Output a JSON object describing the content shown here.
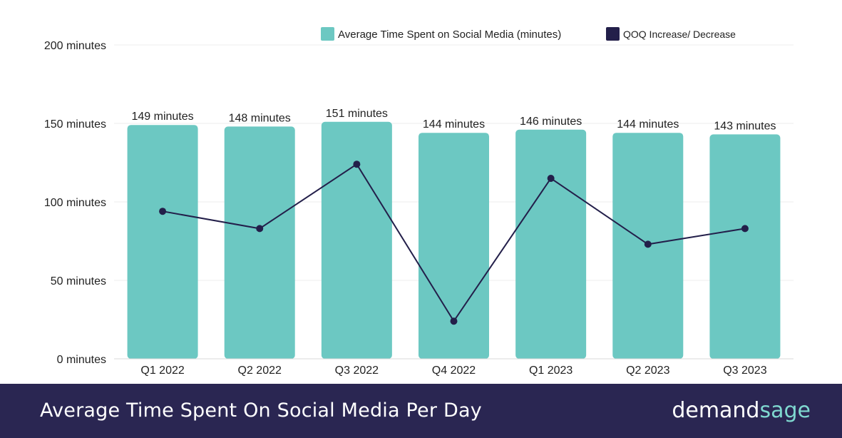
{
  "chart_data": {
    "type": "bar",
    "categories": [
      "Q1 2022",
      "Q2 2022",
      "Q3 2022",
      "Q4 2022",
      "Q1 2023",
      "Q2 2023",
      "Q3 2023"
    ],
    "series": [
      {
        "name": "Average Time Spent on Social Media (minutes)",
        "kind": "bar",
        "values": [
          149,
          148,
          151,
          144,
          146,
          144,
          143
        ],
        "color": "#6cc8c2"
      },
      {
        "name": "QOQ Increase/ Decrease",
        "kind": "line",
        "values": [
          94,
          83,
          124,
          24,
          115,
          73,
          83
        ],
        "color": "#231f4a"
      }
    ],
    "data_labels": [
      "149 minutes",
      "148 minutes",
      "151 minutes",
      "144 minutes",
      "146 minutes",
      "144 minutes",
      "143 minutes"
    ],
    "y_ticks": [
      0,
      50,
      100,
      150,
      200
    ],
    "y_tick_labels": [
      "0 minutes",
      "50 minutes",
      "100 minutes",
      "150 minutes",
      "200 minutes"
    ],
    "ylim": [
      0,
      200
    ],
    "legend": [
      "Average Time Spent on Social Media (minutes)",
      "QOQ Increase/ Decrease"
    ],
    "legend_position": "top-right",
    "grid": true
  },
  "footer": {
    "title": "Average Time Spent On Social Media Per Day",
    "logo_part1": "demand",
    "logo_part2": "sage"
  }
}
